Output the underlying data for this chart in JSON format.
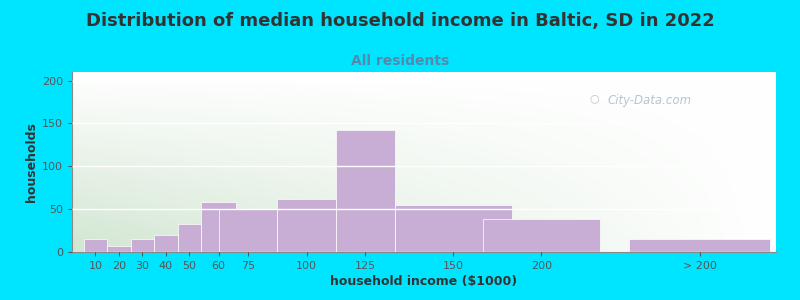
{
  "title": "Distribution of median household income in Baltic, SD in 2022",
  "subtitle": "All residents",
  "xlabel": "household income ($1000)",
  "ylabel": "households",
  "bar_labels": [
    "10",
    "20",
    "30",
    "40",
    "50",
    "60",
    "75",
    "100",
    "125",
    "150",
    "200",
    "> 200"
  ],
  "bar_values": [
    15,
    7,
    15,
    20,
    33,
    58,
    50,
    62,
    142,
    55,
    38,
    15
  ],
  "bar_widths": [
    10,
    10,
    10,
    10,
    10,
    15,
    25,
    25,
    25,
    50,
    50,
    60
  ],
  "bar_lefts": [
    5,
    15,
    25,
    35,
    45,
    55,
    62.5,
    87.5,
    112.5,
    137.5,
    175,
    237.5
  ],
  "bar_color": "#c8aed4",
  "bar_edgecolor": "#ffffff",
  "ylim": [
    0,
    210
  ],
  "yticks": [
    0,
    50,
    100,
    150,
    200
  ],
  "background_color": "#00e5ff",
  "title_color": "#333333",
  "subtitle_color": "#5588aa",
  "title_fontsize": 13,
  "subtitle_fontsize": 10,
  "axis_label_fontsize": 9,
  "tick_fontsize": 8,
  "watermark_text": "City-Data.com",
  "watermark_color": "#aabbcc"
}
